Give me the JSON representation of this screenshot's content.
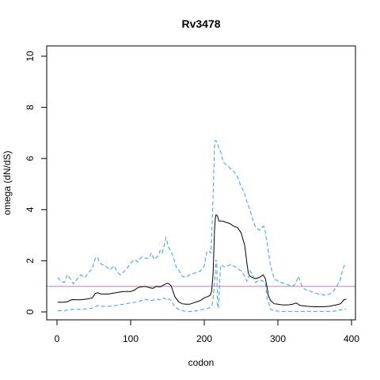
{
  "chart_data": {
    "type": "line",
    "title": "Rv3478",
    "xlabel": "codon",
    "ylabel": "omega (dN/dS)",
    "xlim": [
      0,
      400
    ],
    "ylim": [
      0,
      10
    ],
    "x_ticks": [
      "0",
      "100",
      "200",
      "300",
      "400"
    ],
    "y_ticks": [
      "0",
      "2",
      "4",
      "6",
      "8",
      "10"
    ],
    "reference_line": {
      "y": 1,
      "color": "#c77cbf"
    },
    "colors": {
      "omega": "#000000",
      "ci": "#3a9ee0"
    },
    "series": [
      {
        "role": "omega",
        "style": "solid",
        "x": [
          1,
          10,
          14,
          20,
          30,
          40,
          48,
          52,
          55,
          60,
          70,
          80,
          90,
          100,
          105,
          110,
          115,
          120,
          125,
          130,
          135,
          140,
          145,
          148,
          150,
          152,
          155,
          160,
          165,
          170,
          175,
          180,
          185,
          190,
          195,
          200,
          205,
          208,
          210,
          212,
          213,
          214,
          215,
          216,
          218,
          220,
          225,
          230,
          235,
          240,
          245,
          250,
          255,
          258,
          260,
          262,
          265,
          270,
          275,
          280,
          283,
          285,
          287,
          290,
          295,
          300,
          305,
          310,
          315,
          320,
          325,
          330,
          340,
          350,
          360,
          370,
          380,
          385,
          390,
          393
        ],
        "y": [
          0.38,
          0.38,
          0.4,
          0.48,
          0.47,
          0.5,
          0.55,
          0.72,
          0.75,
          0.7,
          0.7,
          0.75,
          0.8,
          0.8,
          0.85,
          0.95,
          0.98,
          1.0,
          0.95,
          0.92,
          1.0,
          0.98,
          1.05,
          1.1,
          1.12,
          1.1,
          1.02,
          0.6,
          0.4,
          0.32,
          0.3,
          0.3,
          0.35,
          0.4,
          0.45,
          0.55,
          0.6,
          0.65,
          0.8,
          1.5,
          2.4,
          3.2,
          3.65,
          3.8,
          3.75,
          3.55,
          3.55,
          3.5,
          3.45,
          3.35,
          3.3,
          3.1,
          2.6,
          1.9,
          1.5,
          1.4,
          1.35,
          1.3,
          1.35,
          1.45,
          1.3,
          1.0,
          0.65,
          0.45,
          0.32,
          0.3,
          0.28,
          0.27,
          0.28,
          0.3,
          0.35,
          0.25,
          0.22,
          0.2,
          0.2,
          0.22,
          0.28,
          0.32,
          0.48,
          0.5
        ]
      },
      {
        "role": "ci-upper",
        "style": "dashed",
        "x": [
          1,
          5,
          10,
          14,
          18,
          22,
          28,
          32,
          38,
          42,
          48,
          52,
          55,
          58,
          62,
          68,
          72,
          78,
          82,
          86,
          90,
          95,
          100,
          105,
          110,
          115,
          120,
          125,
          128,
          132,
          135,
          138,
          140,
          143,
          145,
          148,
          150,
          152,
          155,
          158,
          162,
          166,
          170,
          175,
          180,
          185,
          190,
          195,
          200,
          203,
          206,
          209,
          211,
          213,
          214,
          215,
          216,
          218,
          220,
          223,
          225,
          228,
          232,
          236,
          240,
          245,
          250,
          254,
          258,
          262,
          266,
          270,
          275,
          278,
          280,
          282,
          284,
          286,
          288,
          290,
          295,
          300,
          305,
          310,
          315,
          320,
          324,
          328,
          332,
          336,
          340,
          345,
          350,
          355,
          360,
          365,
          370,
          375,
          380,
          385,
          388,
          390,
          393
        ],
        "y": [
          1.35,
          1.2,
          1.15,
          1.45,
          1.3,
          1.1,
          1.3,
          1.45,
          1.35,
          1.5,
          1.7,
          2.1,
          2.15,
          1.9,
          1.85,
          1.75,
          1.65,
          1.8,
          1.55,
          1.45,
          1.55,
          1.7,
          1.9,
          2.05,
          1.95,
          2.15,
          2.1,
          2.1,
          2.3,
          2.05,
          2.15,
          2.2,
          2.4,
          2.3,
          2.55,
          2.9,
          2.7,
          2.5,
          2.35,
          2.15,
          1.75,
          1.6,
          1.4,
          1.35,
          1.45,
          1.5,
          1.55,
          1.6,
          1.8,
          2.3,
          2.4,
          2.3,
          3.6,
          5.5,
          6.5,
          6.7,
          6.7,
          6.6,
          6.4,
          6.2,
          5.9,
          5.8,
          5.7,
          5.6,
          5.5,
          5.3,
          4.9,
          4.7,
          4.3,
          4.0,
          3.6,
          3.3,
          3.2,
          3.25,
          3.35,
          3.3,
          2.9,
          2.6,
          2.2,
          1.8,
          1.3,
          1.2,
          1.15,
          1.1,
          1.05,
          1.0,
          1.1,
          1.4,
          1.05,
          0.9,
          0.85,
          0.8,
          0.75,
          0.7,
          0.68,
          0.65,
          0.7,
          0.8,
          1.0,
          1.3,
          1.65,
          1.8,
          1.85
        ]
      },
      {
        "role": "ci-lower",
        "style": "dashed",
        "x": [
          1,
          10,
          20,
          30,
          40,
          48,
          52,
          55,
          60,
          70,
          80,
          90,
          100,
          110,
          115,
          120,
          125,
          130,
          135,
          140,
          145,
          148,
          150,
          152,
          155,
          160,
          165,
          170,
          175,
          180,
          185,
          190,
          195,
          200,
          203,
          206,
          209,
          211,
          213,
          215,
          216,
          217,
          218,
          219,
          220,
          221,
          222,
          223,
          225,
          228,
          232,
          236,
          240,
          245,
          250,
          255,
          258,
          260,
          262,
          265,
          268,
          270,
          272,
          275,
          280,
          283,
          285,
          288,
          290,
          295,
          300,
          305,
          310,
          320,
          330,
          340,
          350,
          360,
          370,
          380,
          385,
          390,
          393
        ],
        "y": [
          0.05,
          0.05,
          0.1,
          0.1,
          0.12,
          0.15,
          0.2,
          0.25,
          0.22,
          0.22,
          0.25,
          0.3,
          0.35,
          0.4,
          0.45,
          0.5,
          0.45,
          0.45,
          0.5,
          0.48,
          0.55,
          0.5,
          0.55,
          0.5,
          0.45,
          0.2,
          0.1,
          0.05,
          0.02,
          0.02,
          0.02,
          0.05,
          0.08,
          0.1,
          0.12,
          0.15,
          0.2,
          0.3,
          0.8,
          1.5,
          2.05,
          1.9,
          0.3,
          0.15,
          0.5,
          1.2,
          1.7,
          1.85,
          1.8,
          1.75,
          1.8,
          1.85,
          1.8,
          1.7,
          1.6,
          1.4,
          1.2,
          1.3,
          1.6,
          1.5,
          1.25,
          1.15,
          1.2,
          1.25,
          1.2,
          1.1,
          0.6,
          0.3,
          0.1,
          0.05,
          0.03,
          0.02,
          0.02,
          0.02,
          0.02,
          0.02,
          0.02,
          0.02,
          0.02,
          0.04,
          0.08,
          0.1,
          0.1
        ]
      }
    ]
  }
}
